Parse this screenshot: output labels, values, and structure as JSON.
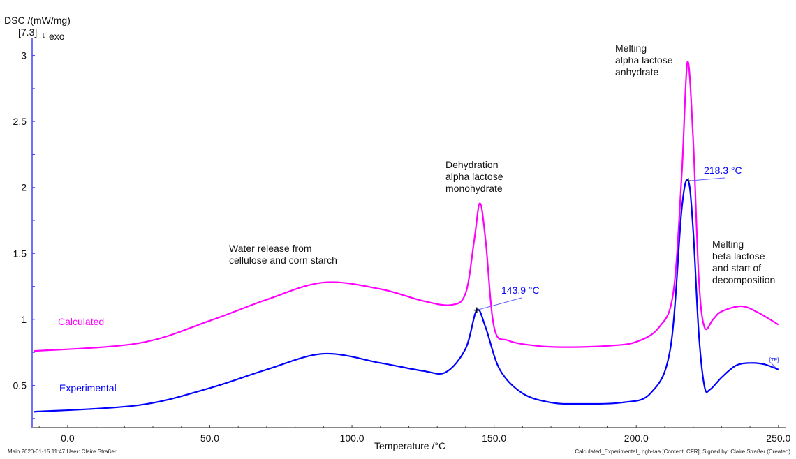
{
  "chart_data": {
    "type": "line",
    "ylabel": "DSC /(mW/mg)",
    "y_scale_note": "[7.3]",
    "exo_label": "exo",
    "exo_direction": "down",
    "xlabel": "Temperature /°C",
    "xlim": [
      -12.5,
      252.5
    ],
    "ylim": [
      0.18,
      3.13
    ],
    "x_ticks": [
      "0.0",
      "50.0",
      "100.0",
      "150.0",
      "200.0",
      "250.0"
    ],
    "x_tick_values": [
      0,
      50,
      100,
      150,
      200,
      250
    ],
    "y_ticks": [
      "0.5",
      "1",
      "1.5",
      "2",
      "2.5",
      "3"
    ],
    "y_tick_values": [
      0.5,
      1,
      1.5,
      2,
      2.5,
      3
    ],
    "grid": false,
    "series": [
      {
        "name": "Calculated",
        "color": "#ff00ff",
        "x": [
          -12,
          25,
          50,
          70,
          90,
          110,
          125,
          135,
          140,
          143,
          145,
          147,
          150,
          155,
          165,
          175,
          190,
          200,
          208,
          213,
          216,
          218,
          220,
          222,
          224,
          227,
          230,
          237,
          243,
          250
        ],
        "y": [
          0.76,
          0.82,
          0.99,
          1.15,
          1.28,
          1.23,
          1.14,
          1.11,
          1.2,
          1.6,
          1.88,
          1.6,
          0.94,
          0.84,
          0.8,
          0.79,
          0.8,
          0.83,
          0.94,
          1.2,
          2.1,
          2.95,
          2.37,
          1.31,
          0.94,
          1.0,
          1.06,
          1.1,
          1.05,
          0.96
        ]
      },
      {
        "name": "Experimental",
        "color": "#0000ff",
        "x": [
          -12,
          25,
          50,
          70,
          90,
          110,
          125,
          133,
          140,
          143.9,
          147,
          152,
          160,
          170,
          180,
          195,
          205,
          212,
          216,
          218.3,
          220,
          222,
          224,
          226,
          230,
          235,
          240,
          245,
          250
        ],
        "y": [
          0.3,
          0.35,
          0.48,
          0.62,
          0.74,
          0.67,
          0.61,
          0.6,
          0.78,
          1.07,
          0.94,
          0.62,
          0.44,
          0.37,
          0.36,
          0.37,
          0.44,
          0.78,
          1.84,
          2.05,
          1.68,
          0.89,
          0.49,
          0.47,
          0.56,
          0.65,
          0.67,
          0.66,
          0.62
        ]
      }
    ],
    "peak_labels": [
      {
        "text": "143.9 °C",
        "x": 143.9,
        "y": 1.07,
        "color": "#0000ff"
      },
      {
        "text": "218.3 °C",
        "x": 218.3,
        "y": 2.05,
        "color": "#0000ff"
      }
    ],
    "annotations": [
      {
        "lines": [
          "Water release from",
          "cellulose and corn starch"
        ]
      },
      {
        "lines": [
          "Dehydration",
          "alpha lactose",
          "monohydrate"
        ]
      },
      {
        "lines": [
          "Melting",
          "alpha lactose",
          "anhydrate"
        ]
      },
      {
        "lines": [
          "Melting",
          "beta lactose",
          "and start of",
          "decomposition"
        ]
      }
    ],
    "tr_marker": "[TR]"
  },
  "footer": {
    "left": "Main    2020-01-15 11:47    User: Claire Straßer",
    "right": "Calculated_Experimental_ ngb-taa [Content: CFR]; Signed by: Claire Straßer (Created)"
  }
}
